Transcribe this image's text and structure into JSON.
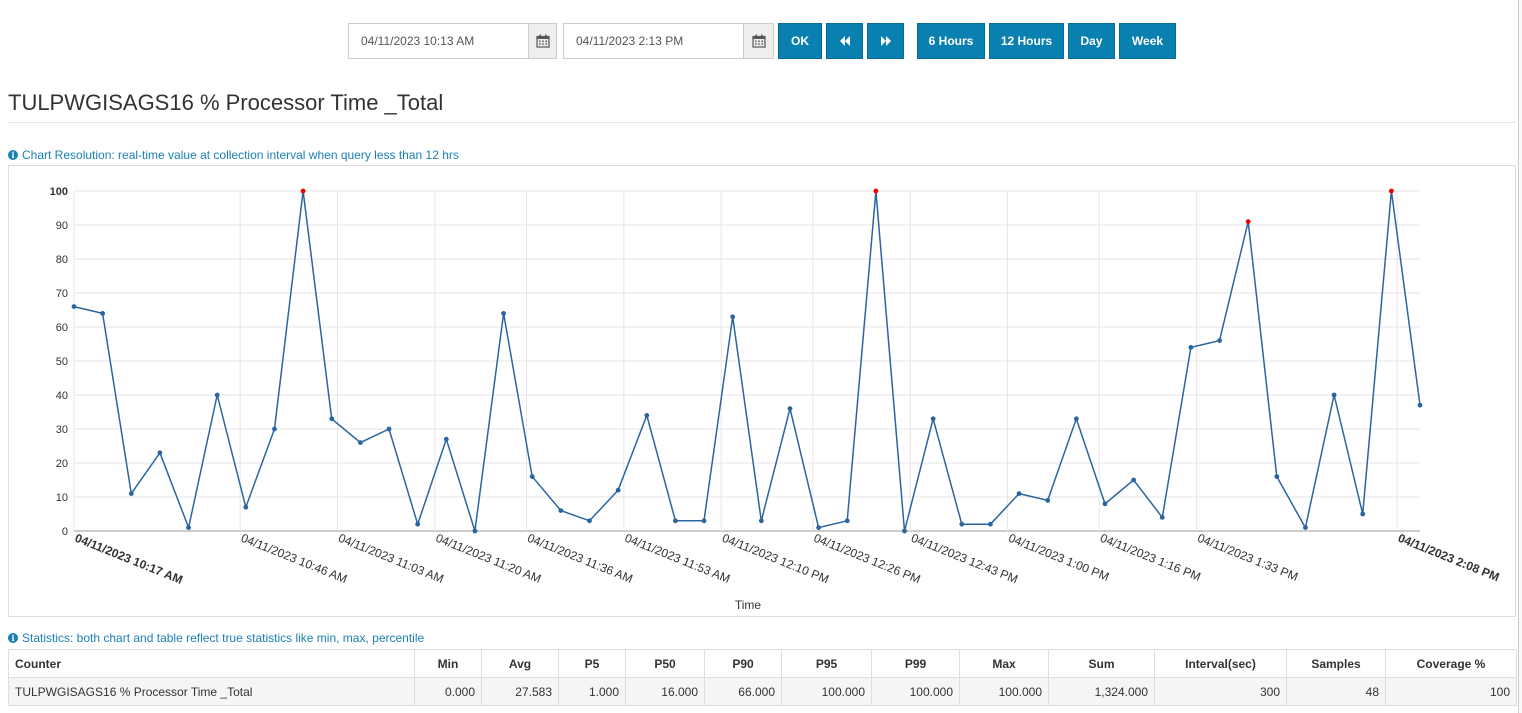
{
  "toolbar": {
    "start_date": "04/11/2023 10:13 AM",
    "end_date": "04/11/2023 2:13 PM",
    "ok": "OK",
    "prev_icon": "double-left-chevron",
    "next_icon": "double-right-chevron",
    "calendar_icon": "calendar",
    "range_buttons": [
      "6 Hours",
      "12 Hours",
      "Day",
      "Week"
    ]
  },
  "page_title": "TULPWGISAGS16 % Processor Time _Total",
  "chart_note": "Chart Resolution: real-time value at collection interval when query less than 12 hrs",
  "stats_note": "Statistics: both chart and table reflect true statistics like min, max, percentile",
  "colors": {
    "accent": "#0a80b0",
    "line": "#2b65a0",
    "peak": "#ee0000",
    "info": "#1a7fb5"
  },
  "chart_data": {
    "type": "line",
    "title": "",
    "xlabel": "Time",
    "ylabel": "",
    "ylim": [
      0,
      100
    ],
    "yticks": [
      0,
      10,
      20,
      30,
      40,
      50,
      60,
      70,
      80,
      90,
      100
    ],
    "grid": true,
    "xticks": [
      "04/11/2023 10:17 AM",
      "04/11/2023 10:46 AM",
      "04/11/2023 11:03 AM",
      "04/11/2023 11:20 AM",
      "04/11/2023 11:36 AM",
      "04/11/2023 11:53 AM",
      "04/11/2023 12:10 PM",
      "04/11/2023 12:26 PM",
      "04/11/2023 12:43 PM",
      "04/11/2023 1:00 PM",
      "04/11/2023 1:16 PM",
      "04/11/2023 1:33 PM",
      "04/11/2023 2:08 PM"
    ],
    "xtick_minutes": [
      0,
      29,
      46,
      63,
      79,
      96,
      113,
      129,
      146,
      163,
      179,
      196,
      231
    ],
    "series": [
      {
        "interval_minutes": 5,
        "values": [
          66,
          64,
          11,
          23,
          1,
          40,
          7,
          30,
          100,
          33,
          26,
          30,
          2,
          27,
          0,
          64,
          16,
          6,
          3,
          12,
          34,
          3,
          3,
          63,
          3,
          36,
          1,
          3,
          100,
          0,
          33,
          2,
          2,
          11,
          9,
          33,
          8,
          15,
          4,
          54,
          56,
          91,
          16,
          1,
          40,
          5,
          100,
          37
        ],
        "peaks": [
          8,
          28,
          41,
          46
        ]
      }
    ]
  },
  "stats": {
    "headers": [
      "Counter",
      "Min",
      "Avg",
      "P5",
      "P50",
      "P90",
      "P95",
      "P99",
      "Max",
      "Sum",
      "Interval(sec)",
      "Samples",
      "Coverage %"
    ],
    "rows": [
      [
        "TULPWGISAGS16 % Processor Time _Total",
        "0.000",
        "27.583",
        "1.000",
        "16.000",
        "66.000",
        "100.000",
        "100.000",
        "100.000",
        "1,324.000",
        "300",
        "48",
        "100"
      ]
    ]
  }
}
